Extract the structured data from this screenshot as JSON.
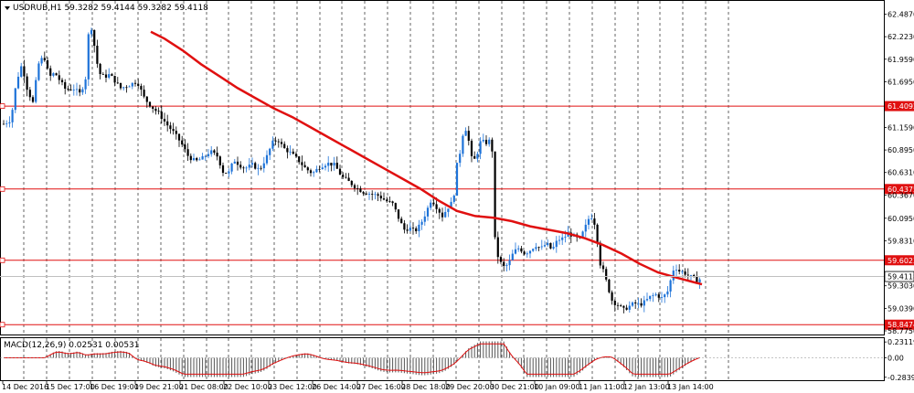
{
  "chart": {
    "title": "USDRUB,H1  59.3282 59.4144 59.3282 59.4118",
    "symbol": "USDRUB",
    "timeframe": "H1",
    "ohlc": {
      "open": 59.3282,
      "high": 59.4144,
      "low": 59.3282,
      "close": 59.4118
    },
    "current_price_label": "59.4118",
    "colors": {
      "bull": "#1e73d8",
      "bear": "#000000",
      "ma": "#e01010",
      "level": "#e01010",
      "grid": "#000000"
    }
  },
  "chart_data": {
    "type": "candlestick",
    "price_axis": {
      "ylim": [
        58.775,
        62.61
      ],
      "ticks": [
        "62.4870",
        "62.2230",
        "61.9590",
        "61.6950",
        "61.4092",
        "61.1590",
        "60.8950",
        "60.6310",
        "60.4375",
        "60.3670",
        "60.0950",
        "59.8310",
        "59.6023",
        "59.4118",
        "59.3030",
        "59.0390",
        "58.8474",
        "58.7750"
      ]
    },
    "levels": [
      {
        "value": 61.4092,
        "label": "61.4092"
      },
      {
        "value": 60.4375,
        "label": "60.4375"
      },
      {
        "value": 59.6023,
        "label": "59.6023"
      },
      {
        "value": 58.8474,
        "label": "58.8474"
      }
    ],
    "date_labels": [
      "14 Dec 2016",
      "15 Dec 17:00",
      "16 Dec 19:00",
      "19 Dec 21:00",
      "21 Dec 08:00",
      "22 Dec 10:00",
      "23 Dec 12:00",
      "26 Dec 14:00",
      "27 Dec 16:00",
      "28 Dec 18:00",
      "29 Dec 20:00",
      "30 Dec 21:00",
      "10 Jan 09:00",
      "11 Jan 11:00",
      "12 Jan 13:00",
      "13 Jan 14:00"
    ],
    "macd": {
      "label": "MACD(12,26,9) 0.02531 0.00531",
      "ticks": [
        "0.23119",
        "0.00",
        "-0.28391"
      ],
      "ylim": [
        -0.3,
        0.26
      ]
    }
  }
}
